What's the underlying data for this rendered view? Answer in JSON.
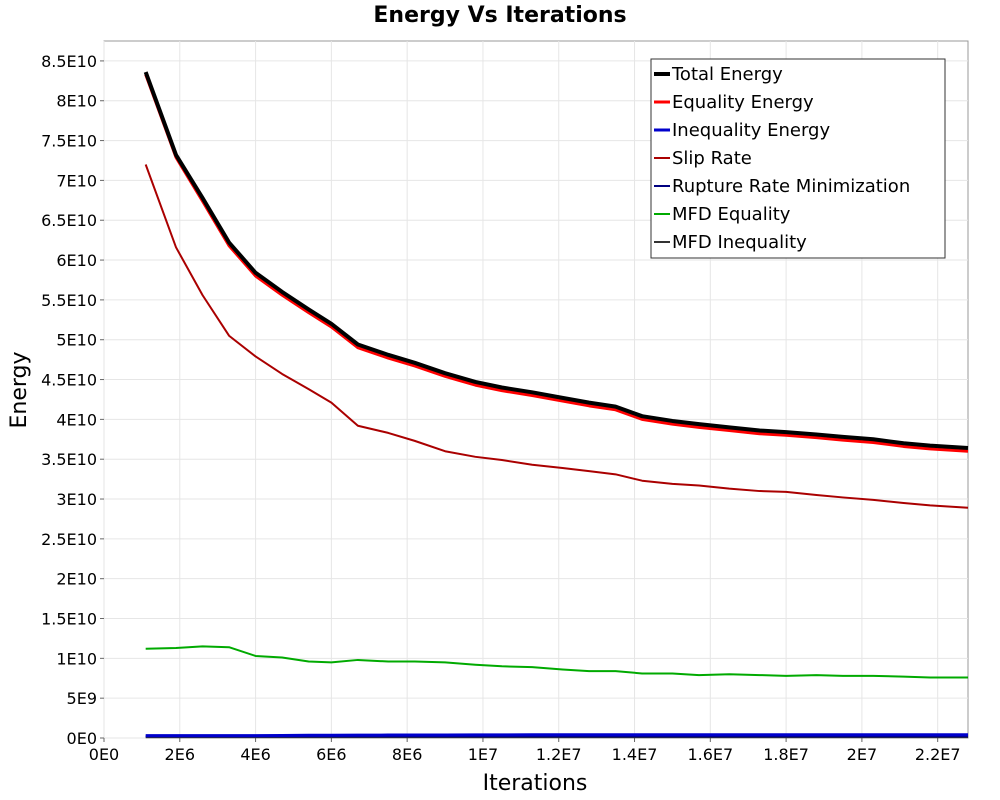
{
  "chart_data": {
    "type": "line",
    "title": "Energy Vs Iterations",
    "xlabel": "Iterations",
    "ylabel": "Energy",
    "xlim": [
      0,
      22800000
    ],
    "ylim": [
      0,
      87500000000
    ],
    "grid": true,
    "legend_position": "top-right",
    "x_ticks": [
      {
        "value": 0,
        "label": "0E0"
      },
      {
        "value": 2000000,
        "label": "2E6"
      },
      {
        "value": 4000000,
        "label": "4E6"
      },
      {
        "value": 6000000,
        "label": "6E6"
      },
      {
        "value": 8000000,
        "label": "8E6"
      },
      {
        "value": 10000000,
        "label": "1E7"
      },
      {
        "value": 12000000,
        "label": "1.2E7"
      },
      {
        "value": 14000000,
        "label": "1.4E7"
      },
      {
        "value": 16000000,
        "label": "1.6E7"
      },
      {
        "value": 18000000,
        "label": "1.8E7"
      },
      {
        "value": 20000000,
        "label": "2E7"
      },
      {
        "value": 22000000,
        "label": "2.2E7"
      }
    ],
    "y_ticks": [
      {
        "value": 0,
        "label": "0E0"
      },
      {
        "value": 5000000000,
        "label": "5E9"
      },
      {
        "value": 10000000000,
        "label": "1E10"
      },
      {
        "value": 15000000000,
        "label": "1.5E10"
      },
      {
        "value": 20000000000,
        "label": "2E10"
      },
      {
        "value": 25000000000,
        "label": "2.5E10"
      },
      {
        "value": 30000000000,
        "label": "3E10"
      },
      {
        "value": 35000000000,
        "label": "3.5E10"
      },
      {
        "value": 40000000000,
        "label": "4E10"
      },
      {
        "value": 45000000000,
        "label": "4.5E10"
      },
      {
        "value": 50000000000,
        "label": "5E10"
      },
      {
        "value": 55000000000,
        "label": "5.5E10"
      },
      {
        "value": 60000000000,
        "label": "6E10"
      },
      {
        "value": 65000000000,
        "label": "6.5E10"
      },
      {
        "value": 70000000000,
        "label": "7E10"
      },
      {
        "value": 75000000000,
        "label": "7.5E10"
      },
      {
        "value": 80000000000,
        "label": "8E10"
      },
      {
        "value": 85000000000,
        "label": "8.5E10"
      }
    ],
    "x": [
      1100000,
      1900000,
      2600000,
      3300000,
      4000000,
      4700000,
      5400000,
      6000000,
      6700000,
      7500000,
      8200000,
      9000000,
      9800000,
      10500000,
      11300000,
      12100000,
      12800000,
      13500000,
      14200000,
      15000000,
      15700000,
      16500000,
      17300000,
      18000000,
      18800000,
      19500000,
      20300000,
      21100000,
      21800000,
      22800000
    ],
    "series": [
      {
        "name": "Total Energy",
        "color": "#000000",
        "width": 4,
        "values": [
          83600000000,
          73200000000,
          67800000000,
          62200000000,
          58400000000,
          56000000000,
          53800000000,
          52000000000,
          49400000000,
          48100000000,
          47100000000,
          45800000000,
          44700000000,
          44000000000,
          43400000000,
          42700000000,
          42100000000,
          41600000000,
          40400000000,
          39800000000,
          39400000000,
          39000000000,
          38600000000,
          38400000000,
          38100000000,
          37800000000,
          37500000000,
          37000000000,
          36700000000,
          36400000000
        ]
      },
      {
        "name": "Equality Energy",
        "color": "#ff0000",
        "width": 3,
        "values": [
          83300000000,
          72900000000,
          67400000000,
          61800000000,
          58000000000,
          55600000000,
          53400000000,
          51600000000,
          49000000000,
          47700000000,
          46700000000,
          45400000000,
          44300000000,
          43600000000,
          43000000000,
          42300000000,
          41700000000,
          41200000000,
          40000000000,
          39400000000,
          39000000000,
          38600000000,
          38200000000,
          38000000000,
          37700000000,
          37400000000,
          37100000000,
          36600000000,
          36300000000,
          36000000000
        ]
      },
      {
        "name": "Inequality Energy",
        "color": "#0000cc",
        "width": 3,
        "values": [
          300000000,
          300000000,
          300000000,
          300000000,
          300000000,
          320000000,
          340000000,
          350000000,
          360000000,
          370000000,
          380000000,
          380000000,
          390000000,
          390000000,
          400000000,
          400000000,
          400000000,
          400000000,
          400000000,
          400000000,
          400000000,
          400000000,
          400000000,
          400000000,
          400000000,
          400000000,
          400000000,
          400000000,
          400000000,
          400000000
        ]
      },
      {
        "name": "Slip Rate",
        "color": "#aa0000",
        "width": 2,
        "values": [
          72000000000,
          61600000000,
          55600000000,
          50500000000,
          47900000000,
          45700000000,
          43800000000,
          42100000000,
          39200000000,
          38300000000,
          37300000000,
          36000000000,
          35300000000,
          34900000000,
          34300000000,
          33900000000,
          33500000000,
          33100000000,
          32300000000,
          31900000000,
          31700000000,
          31300000000,
          31000000000,
          30900000000,
          30500000000,
          30200000000,
          29900000000,
          29500000000,
          29200000000,
          28900000000
        ]
      },
      {
        "name": "Rupture Rate Minimization",
        "color": "#000080",
        "width": 2,
        "values": [
          200000000,
          200000000,
          200000000,
          200000000,
          200000000,
          200000000,
          200000000,
          200000000,
          200000000,
          200000000,
          200000000,
          200000000,
          200000000,
          200000000,
          200000000,
          200000000,
          200000000,
          200000000,
          200000000,
          200000000,
          200000000,
          200000000,
          200000000,
          200000000,
          200000000,
          200000000,
          200000000,
          200000000,
          200000000,
          200000000
        ]
      },
      {
        "name": "MFD Equality",
        "color": "#00aa00",
        "width": 2,
        "values": [
          11200000000,
          11300000000,
          11500000000,
          11400000000,
          10300000000,
          10100000000,
          9600000000,
          9500000000,
          9800000000,
          9600000000,
          9600000000,
          9500000000,
          9200000000,
          9000000000,
          8900000000,
          8600000000,
          8400000000,
          8400000000,
          8100000000,
          8100000000,
          7900000000,
          8000000000,
          7900000000,
          7800000000,
          7900000000,
          7800000000,
          7800000000,
          7700000000,
          7600000000,
          7600000000
        ]
      },
      {
        "name": "MFD Inequality",
        "color": "#333333",
        "width": 2,
        "values": [
          100000000,
          100000000,
          100000000,
          100000000,
          100000000,
          100000000,
          100000000,
          100000000,
          100000000,
          100000000,
          100000000,
          100000000,
          100000000,
          100000000,
          100000000,
          100000000,
          100000000,
          100000000,
          100000000,
          100000000,
          100000000,
          100000000,
          100000000,
          100000000,
          100000000,
          100000000,
          100000000,
          100000000,
          100000000,
          100000000
        ]
      }
    ],
    "legend": [
      {
        "name": "Total Energy",
        "color": "#000000",
        "width": 4
      },
      {
        "name": "Equality Energy",
        "color": "#ff0000",
        "width": 3
      },
      {
        "name": "Inequality Energy",
        "color": "#0000cc",
        "width": 3
      },
      {
        "name": "Slip Rate",
        "color": "#aa0000",
        "width": 2
      },
      {
        "name": "Rupture Rate Minimization",
        "color": "#000080",
        "width": 2
      },
      {
        "name": "MFD Equality",
        "color": "#00aa00",
        "width": 2
      },
      {
        "name": "MFD Inequality",
        "color": "#333333",
        "width": 2
      }
    ]
  }
}
